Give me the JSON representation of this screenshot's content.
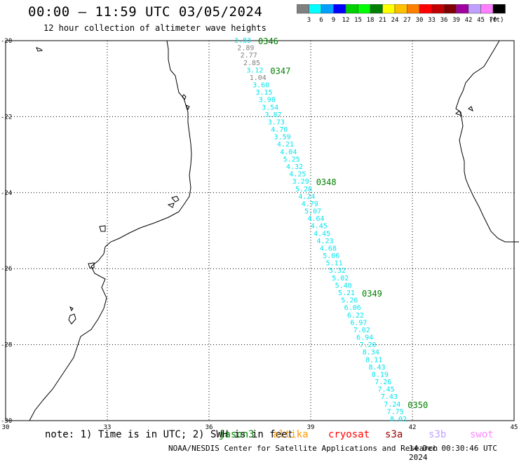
{
  "header": {
    "title": "00:00 – 11:59 UTC 03/05/2024",
    "subtitle": "12 hour collection of altimeter wave heights"
  },
  "legend": {
    "unit_label": "(ft)",
    "bins": [
      {
        "label": "3",
        "color": "#808080"
      },
      {
        "label": "6",
        "color": "#00ffff"
      },
      {
        "label": "9",
        "color": "#00a0ff"
      },
      {
        "label": "12",
        "color": "#0000ff"
      },
      {
        "label": "15",
        "color": "#00d000"
      },
      {
        "label": "18",
        "color": "#00ff00"
      },
      {
        "label": "21",
        "color": "#008000"
      },
      {
        "label": "24",
        "color": "#ffff00"
      },
      {
        "label": "27",
        "color": "#ffc000"
      },
      {
        "label": "30",
        "color": "#ff8000"
      },
      {
        "label": "33",
        "color": "#ff0000"
      },
      {
        "label": "36",
        "color": "#c00000"
      },
      {
        "label": "39",
        "color": "#800000"
      },
      {
        "label": "42",
        "color": "#a000a0"
      },
      {
        "label": "45",
        "color": "#c0a0ff"
      },
      {
        "label": "70",
        "color": "#ff80ff"
      },
      {
        "label": "",
        "color": "#000000"
      }
    ]
  },
  "axes": {
    "lon_ticks": [
      30,
      33,
      36,
      39,
      42,
      45
    ],
    "lat_ticks": [
      -20,
      -22,
      -24,
      -26,
      -28,
      -30
    ],
    "lon_range": [
      30,
      45
    ],
    "lat_range": [
      -30,
      -20
    ]
  },
  "track": {
    "color_gray": "#808080",
    "color_cyan": "#00e5ee",
    "time_color": "#008000",
    "points": [
      {
        "v": "3.83",
        "c": "cyan"
      },
      {
        "v": "2.89",
        "c": "gray"
      },
      {
        "v": "2.77",
        "c": "gray"
      },
      {
        "v": "2.85",
        "c": "gray"
      },
      {
        "v": "3.12",
        "c": "cyan"
      },
      {
        "v": "1.04",
        "c": "gray"
      },
      {
        "v": "3.60",
        "c": "cyan"
      },
      {
        "v": "3.15",
        "c": "cyan"
      },
      {
        "v": "3.98",
        "c": "cyan"
      },
      {
        "v": "3.54",
        "c": "cyan"
      },
      {
        "v": "3.87",
        "c": "cyan"
      },
      {
        "v": "3.73",
        "c": "cyan"
      },
      {
        "v": "4.70",
        "c": "cyan"
      },
      {
        "v": "3.59",
        "c": "cyan"
      },
      {
        "v": "4.21",
        "c": "cyan"
      },
      {
        "v": "4.04",
        "c": "cyan"
      },
      {
        "v": "5.25",
        "c": "cyan"
      },
      {
        "v": "4.32",
        "c": "cyan"
      },
      {
        "v": "4.25",
        "c": "cyan"
      },
      {
        "v": "3.29",
        "c": "cyan"
      },
      {
        "v": "5.28",
        "c": "cyan"
      },
      {
        "v": "4.24",
        "c": "cyan"
      },
      {
        "v": "4.79",
        "c": "cyan"
      },
      {
        "v": "5.07",
        "c": "cyan"
      },
      {
        "v": "4.64",
        "c": "cyan"
      },
      {
        "v": "4.45",
        "c": "cyan"
      },
      {
        "v": "4.45",
        "c": "cyan"
      },
      {
        "v": "4.23",
        "c": "cyan"
      },
      {
        "v": "4.68",
        "c": "cyan"
      },
      {
        "v": "5.06",
        "c": "cyan"
      },
      {
        "v": "5.11",
        "c": "cyan"
      },
      {
        "v": "5.32",
        "c": "cyan"
      },
      {
        "v": "5.02",
        "c": "cyan"
      },
      {
        "v": "5.40",
        "c": "cyan"
      },
      {
        "v": "5.21",
        "c": "cyan"
      },
      {
        "v": "5.26",
        "c": "cyan"
      },
      {
        "v": "6.06",
        "c": "cyan"
      },
      {
        "v": "6.22",
        "c": "cyan"
      },
      {
        "v": "6.97",
        "c": "cyan"
      },
      {
        "v": "7.02",
        "c": "cyan"
      },
      {
        "v": "6.94",
        "c": "cyan"
      },
      {
        "v": "7.20",
        "c": "cyan"
      },
      {
        "v": "8.34",
        "c": "cyan"
      },
      {
        "v": "8.11",
        "c": "cyan"
      },
      {
        "v": "8.43",
        "c": "cyan"
      },
      {
        "v": "8.19",
        "c": "cyan"
      },
      {
        "v": "7.26",
        "c": "cyan"
      },
      {
        "v": "7.45",
        "c": "cyan"
      },
      {
        "v": "7.43",
        "c": "cyan"
      },
      {
        "v": "7.24",
        "c": "cyan"
      },
      {
        "v": "7.75",
        "c": "cyan"
      },
      {
        "v": "8.02",
        "c": "cyan"
      }
    ],
    "time_labels": [
      {
        "text": "0346",
        "after_index": 0
      },
      {
        "text": "0347",
        "after_index": 4
      },
      {
        "text": "0348",
        "after_index": 19
      },
      {
        "text": "0349",
        "after_index": 34
      },
      {
        "text": "0350",
        "after_index": 49
      }
    ]
  },
  "footer": {
    "note": "note: 1) Time is in UTC; 2) SWH is in feet",
    "satellites": [
      {
        "name": "jason3",
        "color": "#008000"
      },
      {
        "name": "altika",
        "color": "#ff9900"
      },
      {
        "name": "cryosat",
        "color": "#ff0000"
      },
      {
        "name": "s3a",
        "color": "#990000"
      },
      {
        "name": "s3b",
        "color": "#c0a0ff"
      },
      {
        "name": "swot",
        "color": "#ff88ff"
      }
    ],
    "credit": "NOAA/NESDIS Center for Satellite Applications and Research",
    "timestamp": "14 Dec 00:30:46 UTC 2024"
  }
}
